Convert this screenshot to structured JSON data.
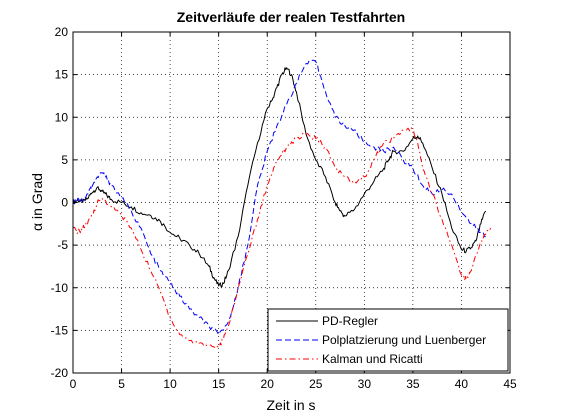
{
  "chart_data": {
    "type": "line",
    "title": "Zeitverläufe der realen Testfahrten",
    "xlabel": "Zeit in s",
    "ylabel": "α in Grad",
    "xlim": [
      0,
      45
    ],
    "ylim": [
      -20,
      20
    ],
    "xticks": [
      0,
      5,
      10,
      15,
      20,
      25,
      30,
      35,
      40,
      45
    ],
    "yticks": [
      -20,
      -15,
      -10,
      -5,
      0,
      5,
      10,
      15,
      20
    ],
    "grid": "dotted",
    "legend_position": "bottom-right",
    "series": [
      {
        "name": "PD-Regler",
        "color": "#000000",
        "dash": "solid",
        "points": [
          [
            0,
            0
          ],
          [
            0.5,
            0.3
          ],
          [
            1,
            0
          ],
          [
            1.5,
            0.5
          ],
          [
            2,
            1.2
          ],
          [
            2.5,
            1.8
          ],
          [
            3,
            1.3
          ],
          [
            3.5,
            0.8
          ],
          [
            4,
            0.3
          ],
          [
            5,
            0
          ],
          [
            6,
            -0.5
          ],
          [
            7,
            -1.2
          ],
          [
            8,
            -1.5
          ],
          [
            9,
            -2.2
          ],
          [
            10,
            -3.5
          ],
          [
            11,
            -4.2
          ],
          [
            12,
            -5
          ],
          [
            13,
            -6
          ],
          [
            14,
            -7.5
          ],
          [
            14.5,
            -8.8
          ],
          [
            15,
            -9.8
          ],
          [
            15.5,
            -9.5
          ],
          [
            16,
            -8
          ],
          [
            17,
            -4
          ],
          [
            18,
            2
          ],
          [
            19,
            7
          ],
          [
            20,
            11
          ],
          [
            20.5,
            12
          ],
          [
            21,
            13.5
          ],
          [
            21.5,
            15
          ],
          [
            22,
            15.8
          ],
          [
            22.5,
            15
          ],
          [
            23,
            13
          ],
          [
            24,
            8
          ],
          [
            25,
            5
          ],
          [
            26,
            3
          ],
          [
            27,
            0
          ],
          [
            27.5,
            -1
          ],
          [
            28,
            -1.6
          ],
          [
            29,
            -0.8
          ],
          [
            30,
            1
          ],
          [
            31,
            2.5
          ],
          [
            32,
            4
          ],
          [
            32.5,
            5
          ],
          [
            33,
            6
          ],
          [
            34,
            6
          ],
          [
            35,
            7.5
          ],
          [
            35.5,
            7.8
          ],
          [
            36,
            7
          ],
          [
            37,
            4
          ],
          [
            38,
            1
          ],
          [
            39,
            -3
          ],
          [
            40,
            -5.5
          ],
          [
            40.5,
            -5.7
          ],
          [
            41,
            -5.3
          ],
          [
            41.5,
            -4.5
          ],
          [
            42,
            -2.5
          ],
          [
            42.5,
            -1
          ]
        ]
      },
      {
        "name": "Polplatzierung und Luenberger",
        "color": "#0000ff",
        "dash": "dashed",
        "points": [
          [
            0,
            0
          ],
          [
            0.5,
            0.5
          ],
          [
            1,
            0.2
          ],
          [
            1.5,
            1
          ],
          [
            2,
            2
          ],
          [
            2.5,
            3
          ],
          [
            3,
            3.5
          ],
          [
            3.5,
            2.8
          ],
          [
            4,
            2
          ],
          [
            5,
            0.5
          ],
          [
            6,
            -1
          ],
          [
            7,
            -3
          ],
          [
            8,
            -6
          ],
          [
            9,
            -8
          ],
          [
            10,
            -9.5
          ],
          [
            11,
            -11
          ],
          [
            12,
            -12.5
          ],
          [
            13,
            -13.5
          ],
          [
            14,
            -14.5
          ],
          [
            15,
            -15.5
          ],
          [
            16,
            -14
          ],
          [
            17,
            -10
          ],
          [
            18,
            -5
          ],
          [
            19,
            2
          ],
          [
            20,
            6
          ],
          [
            21,
            9
          ],
          [
            22,
            11.5
          ],
          [
            23,
            14
          ],
          [
            24,
            16.3
          ],
          [
            25,
            16.5
          ],
          [
            26,
            13
          ],
          [
            27,
            10
          ],
          [
            28,
            9
          ],
          [
            29,
            8.5
          ],
          [
            30,
            7
          ],
          [
            31,
            6.5
          ],
          [
            32,
            6
          ],
          [
            33,
            6.5
          ],
          [
            34,
            5
          ],
          [
            35,
            4
          ],
          [
            36,
            2
          ],
          [
            37,
            1
          ],
          [
            38,
            1.5
          ],
          [
            39,
            1
          ],
          [
            40,
            -1
          ],
          [
            41,
            -2.5
          ],
          [
            42,
            -3.5
          ],
          [
            42.5,
            -4
          ]
        ]
      },
      {
        "name": "Kalman und Ricatti",
        "color": "#ff0000",
        "dash": "dashdot",
        "points": [
          [
            0,
            -3
          ],
          [
            0.5,
            -3.5
          ],
          [
            1,
            -3
          ],
          [
            1.5,
            -2.5
          ],
          [
            2,
            -1.5
          ],
          [
            2.5,
            0
          ],
          [
            3,
            0.5
          ],
          [
            4,
            -0.5
          ],
          [
            5,
            -1.5
          ],
          [
            6,
            -3
          ],
          [
            7,
            -5.5
          ],
          [
            8,
            -8
          ],
          [
            9,
            -10.5
          ],
          [
            10,
            -13.5
          ],
          [
            11,
            -15.5
          ],
          [
            12,
            -16.2
          ],
          [
            13,
            -16.5
          ],
          [
            14,
            -16.8
          ],
          [
            15,
            -17
          ],
          [
            15.5,
            -16
          ],
          [
            16,
            -14.5
          ],
          [
            17,
            -10
          ],
          [
            18,
            -6
          ],
          [
            19,
            -2
          ],
          [
            20,
            2
          ],
          [
            21,
            5
          ],
          [
            22,
            6.5
          ],
          [
            23,
            7.5
          ],
          [
            24,
            8
          ],
          [
            25,
            7.5
          ],
          [
            26,
            6.5
          ],
          [
            27,
            4
          ],
          [
            28,
            3
          ],
          [
            29,
            2.5
          ],
          [
            30,
            3
          ],
          [
            31,
            5
          ],
          [
            32,
            7
          ],
          [
            33,
            7.5
          ],
          [
            34,
            8.5
          ],
          [
            35,
            8.5
          ],
          [
            35.5,
            7
          ],
          [
            36,
            4
          ],
          [
            37,
            1
          ],
          [
            38,
            -2
          ],
          [
            39,
            -5
          ],
          [
            40,
            -8.5
          ],
          [
            40.5,
            -9
          ],
          [
            41,
            -8
          ],
          [
            42,
            -4.5
          ],
          [
            43,
            -3
          ]
        ]
      }
    ]
  }
}
